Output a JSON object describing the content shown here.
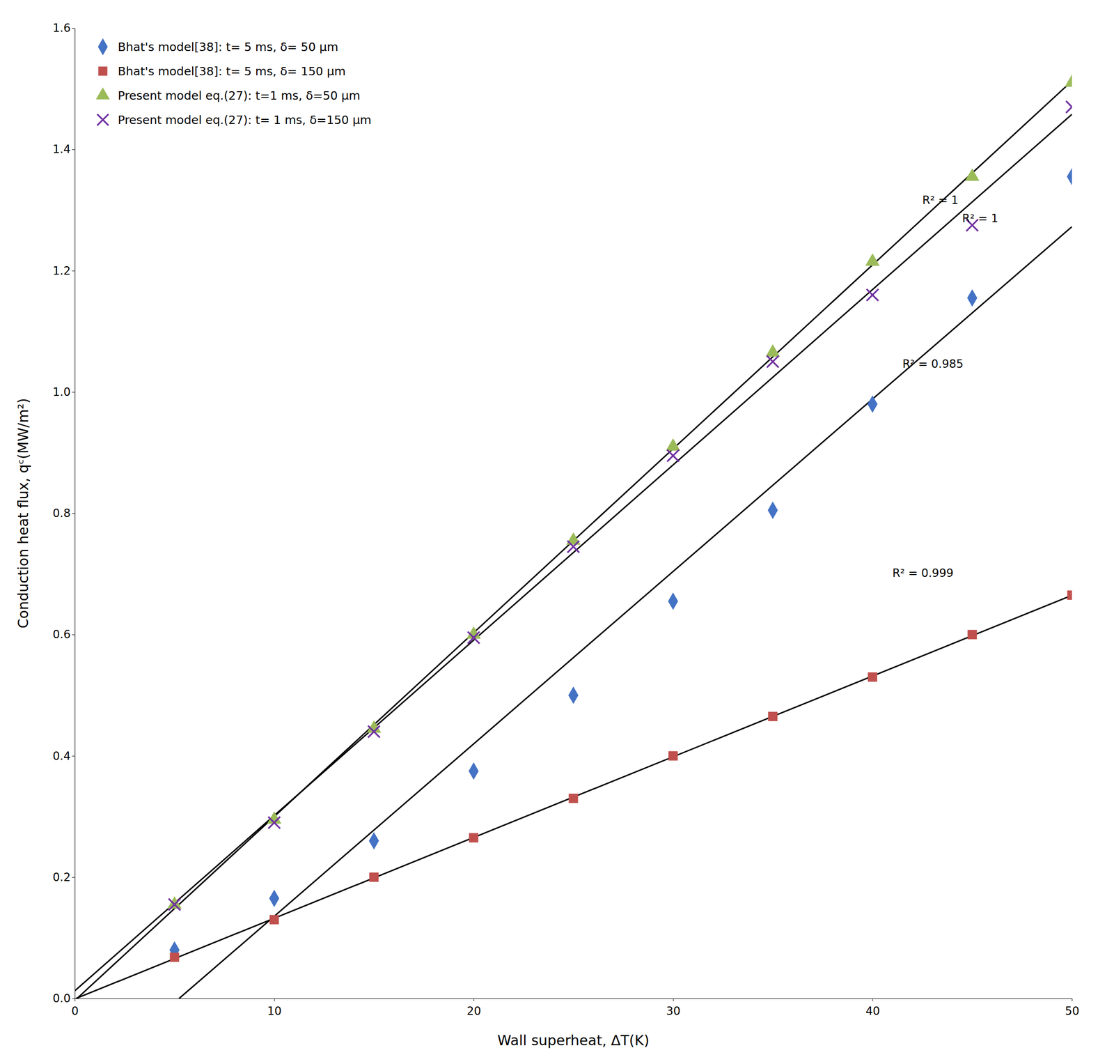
{
  "chart_data": {
    "type": "scatter",
    "xlabel": "Wall superheat, ΔT(K)",
    "ylabel": "Conduction  heat flux, qᶜ(MW/m²)",
    "xlim": [
      0,
      50
    ],
    "ylim": [
      0,
      1.6
    ],
    "xticks": [
      0,
      10,
      20,
      30,
      40,
      50
    ],
    "yticks": [
      {
        "value": 0,
        "label": "0.0"
      },
      0.2,
      0.4,
      0.6,
      0.8,
      {
        "value": 1.0,
        "label": "1.0"
      },
      1.2,
      1.4,
      1.6
    ],
    "grid": false,
    "legend": "upper left",
    "series": [
      {
        "name": "Bhat's model[38]: t= 5 ms, δ= 50 μm",
        "color": "#4472C4",
        "marker": "diamond",
        "x": [
          5,
          10,
          15,
          20,
          25,
          30,
          35,
          40,
          45,
          50
        ],
        "values": [
          0.08,
          0.165,
          0.26,
          0.375,
          0.5,
          0.655,
          0.805,
          0.98,
          1.155,
          1.355
        ]
      },
      {
        "name": "Bhat's model[38]: t= 5 ms, δ= 150 μm",
        "color": "#C0504D",
        "marker": "square",
        "x": [
          5,
          10,
          15,
          20,
          25,
          30,
          35,
          40,
          45,
          50
        ],
        "values": [
          0.068,
          0.13,
          0.2,
          0.265,
          0.33,
          0.4,
          0.465,
          0.53,
          0.6,
          0.665
        ]
      },
      {
        "name": "Present model eq.(27): t=1 ms, δ=50 μm",
        "color": "#9BBB59",
        "marker": "triangle",
        "x": [
          5,
          10,
          15,
          20,
          25,
          30,
          35,
          40,
          45,
          50
        ],
        "values": [
          0.155,
          0.295,
          0.445,
          0.6,
          0.755,
          0.91,
          1.065,
          1.215,
          1.355,
          1.51
        ]
      },
      {
        "name": "Present model eq.(27): t= 1 ms, δ=150 μm",
        "color": "#7030A0",
        "marker": "x",
        "x": [
          5,
          10,
          15,
          20,
          25,
          30,
          35,
          40,
          45,
          50
        ],
        "values": [
          0.155,
          0.29,
          0.44,
          0.595,
          0.745,
          0.895,
          1.05,
          1.16,
          1.275,
          1.47
        ]
      },
      {
        "type": "line",
        "color": "#000000",
        "line_style": "solid",
        "x": [
          0.1099,
          50
        ],
        "values": [
          0,
          1.5127
        ]
      },
      {
        "type": "line",
        "color": "#000000",
        "line_style": "solid",
        "x": [
          0,
          50
        ],
        "values": [
          0.0127,
          1.4578
        ]
      },
      {
        "type": "line",
        "color": "#000000",
        "line_style": "solid",
        "x": [
          5.2303,
          50
        ],
        "values": [
          0,
          1.2725
        ]
      },
      {
        "type": "line",
        "color": "#000000",
        "line_style": "solid",
        "x": [
          0.0601,
          50
        ],
        "values": [
          0,
          0.6648
        ]
      }
    ],
    "annotations": [
      {
        "text": "R² = 1",
        "x": 42.5,
        "y": 1.31
      },
      {
        "text": "R² = 0.999",
        "x": 41.0,
        "y": 0.695
      },
      {
        "text": "R² = 1",
        "x": 44.5,
        "y": 1.28
      },
      {
        "text": "R² = 0.985",
        "x": 41.5,
        "y": 1.04
      }
    ]
  }
}
